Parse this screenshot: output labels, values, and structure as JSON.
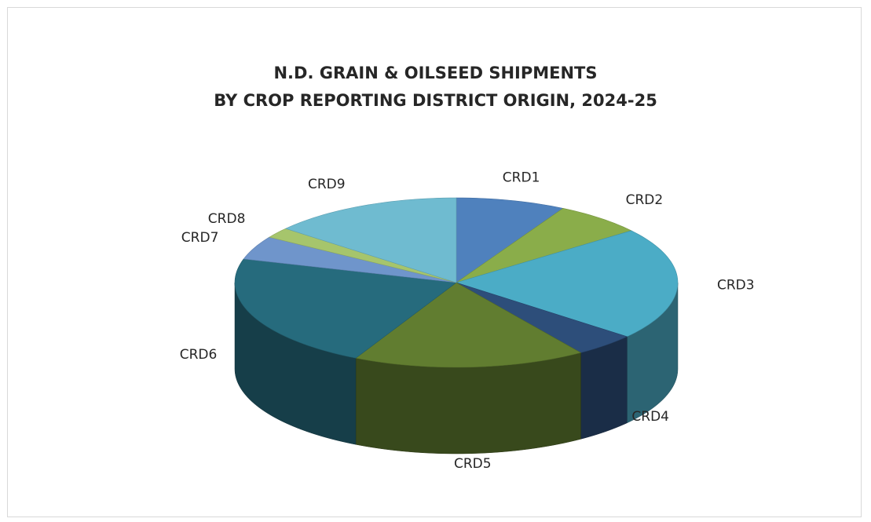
{
  "chart_data": {
    "type": "pie",
    "title": "N.D. GRAIN & OILSEED SHIPMENTS",
    "subtitle": "BY CROP REPORTING DISTRICT ORIGIN, 2024-25",
    "style": "3d",
    "categories": [
      "CRD1",
      "CRD2",
      "CRD3",
      "CRD4",
      "CRD5",
      "CRD6",
      "CRD7",
      "CRD8",
      "CRD9"
    ],
    "values": [
      8.0,
      6.5,
      21.5,
      4.5,
      17.0,
      22.0,
      4.5,
      2.0,
      14.0
    ],
    "colors": [
      "#4f81bd",
      "#8aad4a",
      "#4bacc6",
      "#2d4e7a",
      "#617d30",
      "#266b7d",
      "#6f95cb",
      "#a6c56c",
      "#6fbbd0"
    ]
  }
}
